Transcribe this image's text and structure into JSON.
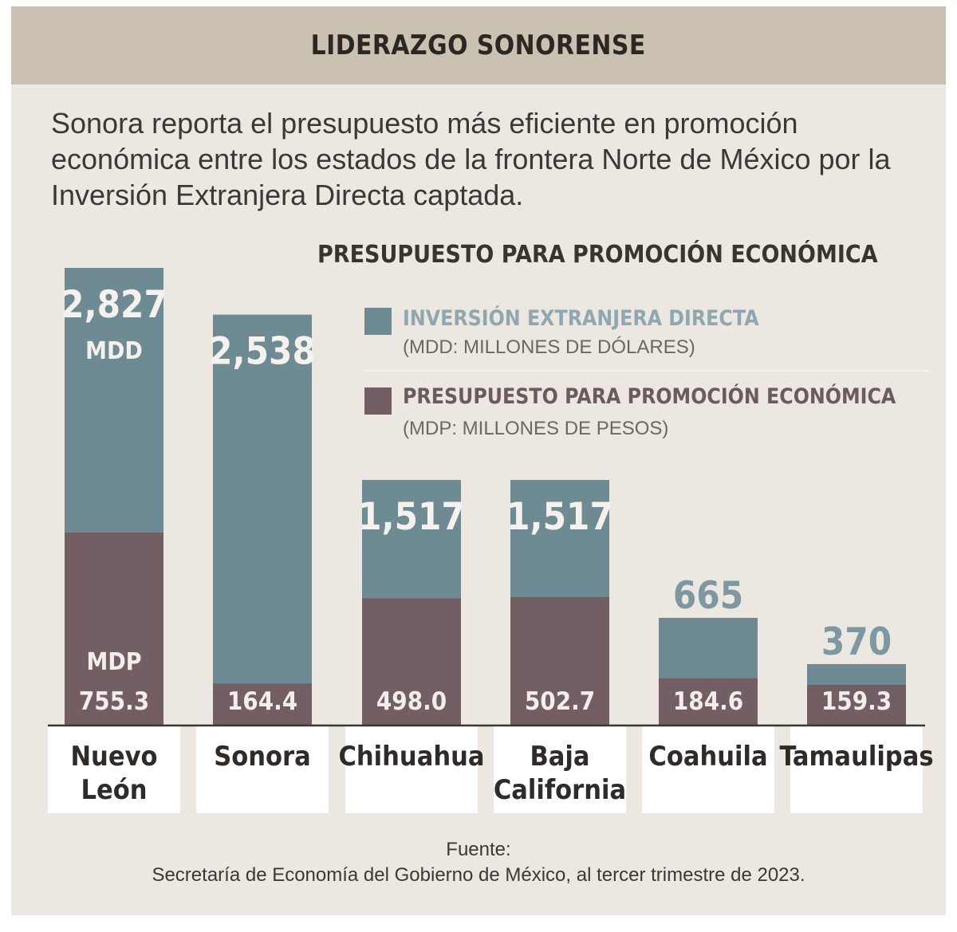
{
  "header": {
    "title": "LIDERAZGO SONORENSE"
  },
  "intro": {
    "text": "Sonora reporta el presupuesto más eficiente en promoción económica entre los estados de la frontera Norte de México por la Inversión Extranjera Directa captada."
  },
  "legend": {
    "ied_label": "INVERSIÓN EXTRANJERA DIRECTA",
    "ied_sub": "(MDD: MILLONES DE DÓLARES)",
    "budget_label": "PRESUPUESTO PARA PROMOCIÓN ECONÓMICA",
    "budget_sub": "(MDP: MILLONES DE PESOS)"
  },
  "source": {
    "label": "Fuente:",
    "text": "Secretaría de Economía del Gobierno de México, al tercer trimestre de 2023."
  },
  "colors": {
    "ied": "#6e8a92",
    "budget": "#725e63",
    "header_bg": "#cbc1b3",
    "panel_bg": "#ece7e0"
  },
  "chart_data": {
    "type": "bar",
    "title": "PRESUPUESTO PARA PROMOCIÓN ECONÓMICA",
    "categories": [
      [
        "Nuevo",
        "León"
      ],
      [
        "Sonora"
      ],
      [
        "Chihuahua"
      ],
      [
        "Baja",
        "California"
      ],
      [
        "Coahuila"
      ],
      [
        "Tamaulipas"
      ]
    ],
    "series": [
      {
        "name": "INVERSIÓN EXTRANJERA DIRECTA",
        "unit": "MDD",
        "labels": [
          "2,827",
          "2,538",
          "1,517",
          "1,517",
          "665",
          "370"
        ],
        "values": [
          2827,
          2538,
          1517,
          1517,
          665,
          370
        ]
      },
      {
        "name": "PRESUPUESTO PARA PROMOCIÓN ECONÓMICA",
        "unit": "MDP",
        "labels": [
          "755.3",
          "164.4",
          "498.0",
          "502.7",
          "184.6",
          "159.3"
        ],
        "values": [
          755.3,
          164.4,
          498.0,
          502.7,
          184.6,
          159.3
        ]
      }
    ],
    "unit_labels": {
      "ied": "MDD",
      "budget": "MDP"
    },
    "legend": "top-right",
    "grid": false
  }
}
